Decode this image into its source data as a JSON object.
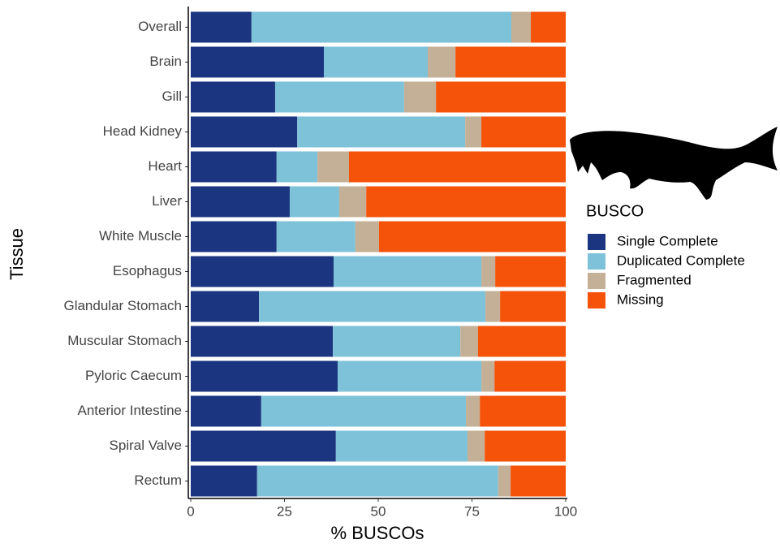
{
  "chart_data": {
    "type": "stacked-horizontal-bar",
    "x_label": "% BUSCOs",
    "y_label": "Tissue",
    "legend_title": "BUSCO",
    "categories": [
      "Overall",
      "Brain",
      "Gill",
      "Head Kidney",
      "Heart",
      "Liver",
      "White Muscle",
      "Esophagus",
      "Glandular Stomach",
      "Muscular Stomach",
      "Pyloric Caecum",
      "Anterior Intestine",
      "Spiral Valve",
      "Rectum"
    ],
    "series": [
      {
        "name": "Single Complete",
        "color": "#1b3580",
        "values": [
          16.2,
          35.5,
          22.5,
          28.4,
          22.9,
          26.4,
          22.9,
          38.1,
          18.2,
          37.9,
          39.2,
          18.8,
          38.7,
          17.7
        ]
      },
      {
        "name": "Duplicated Complete",
        "color": "#7dc2d8",
        "values": [
          69.3,
          27.7,
          34.4,
          44.8,
          10.9,
          13.2,
          21.0,
          39.4,
          60.4,
          34.0,
          38.3,
          54.6,
          35.1,
          64.3
        ]
      },
      {
        "name": "Fragmented",
        "color": "#c4b096",
        "values": [
          5.2,
          7.4,
          8.5,
          4.3,
          8.4,
          7.2,
          6.3,
          3.7,
          3.9,
          4.7,
          3.5,
          3.7,
          4.6,
          3.3
        ]
      },
      {
        "name": "Missing",
        "color": "#f5520a",
        "values": [
          9.3,
          29.4,
          34.6,
          22.5,
          57.8,
          53.2,
          49.8,
          18.8,
          17.5,
          23.4,
          19.0,
          22.9,
          21.6,
          14.7
        ]
      }
    ],
    "xlim": [
      0,
      100
    ],
    "xticks": [
      0,
      25,
      50,
      75,
      100
    ]
  }
}
